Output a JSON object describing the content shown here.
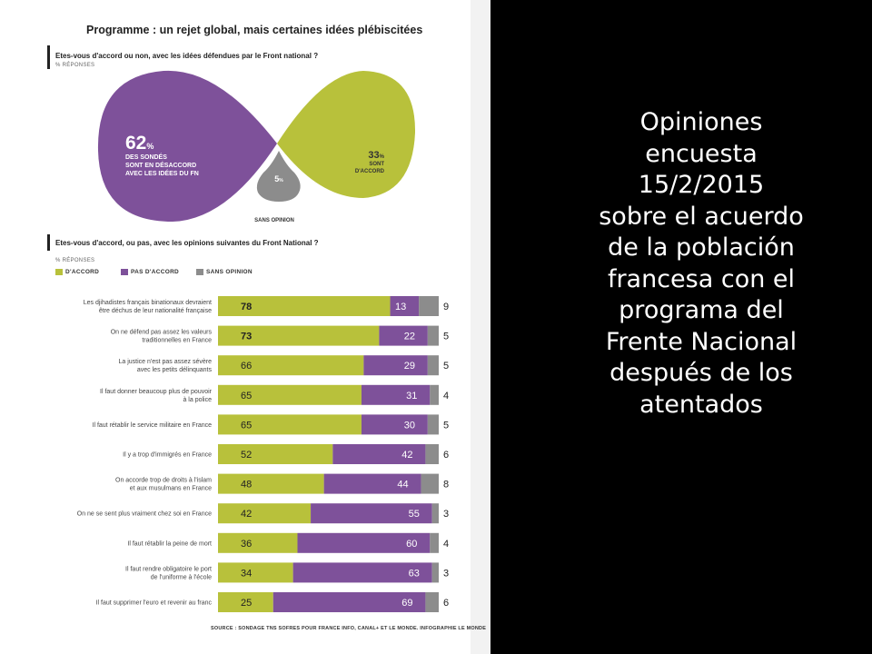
{
  "infographic": {
    "title": "Programme : un rejet global, mais certaines idées plébiscitées",
    "q1": {
      "question": "Etes-vous d'accord ou non, avec les idées défendues par le Front national ?",
      "note": "% RÉPONSES",
      "disagree": {
        "value": "62",
        "unit": "%",
        "lines": [
          "DES SONDÉS",
          "SONT EN DÉSACCORD",
          "AVEC LES IDÉES DU FN"
        ]
      },
      "agree": {
        "value": "33",
        "unit": "%",
        "lines": [
          "SONT",
          "D'ACCORD"
        ]
      },
      "no_opinion": {
        "value": "5",
        "unit": "%",
        "label": "SANS OPINION"
      }
    },
    "q2": {
      "question": "Etes-vous d'accord, ou pas, avec les opinions suivantes du Front National ?",
      "note": "% RÉPONSES"
    },
    "source": "SOURCE : SONDAGE TNS SOFRES POUR FRANCE INFO, CANAL+ ET LE MONDE. INFOGRAPHIE LE MONDE"
  },
  "colors": {
    "agree": "#b8c13b",
    "disagree": "#7e519a",
    "no_opinion": "#8c8c8c"
  },
  "chart_data": [
    {
      "type": "pie",
      "categories": [
        "PAS D'ACCORD",
        "D'ACCORD",
        "SANS OPINION"
      ],
      "values": [
        62,
        33,
        5
      ]
    },
    {
      "type": "bar",
      "orientation": "horizontal",
      "stacked": true,
      "legend": "top-left",
      "xlim": [
        0,
        100
      ],
      "categories": [
        [
          "Les djihadistes français binationaux devraient",
          "être déchus de leur nationalité française"
        ],
        [
          "On ne défend pas assez les valeurs",
          "traditionnelles en France"
        ],
        [
          "La justice n'est pas assez sévère",
          "avec les petits délinquants"
        ],
        [
          "Il faut donner beaucoup plus de pouvoir",
          "à la police"
        ],
        [
          "Il faut rétablir le service militaire en France"
        ],
        [
          "Il y a trop d'immigrés en France"
        ],
        [
          "On accorde trop de droits à l'islam",
          "et aux musulmans en France"
        ],
        [
          "On ne se sent plus vraiment chez soi en France"
        ],
        [
          "Il faut rétablir la peine de mort"
        ],
        [
          "Il faut rendre obligatoire le port",
          "de l'uniforme à l'école"
        ],
        [
          "Il faut supprimer l'euro et revenir au franc"
        ]
      ],
      "series": [
        {
          "name": "D'ACCORD",
          "values": [
            78,
            73,
            66,
            65,
            65,
            52,
            48,
            42,
            36,
            34,
            25
          ]
        },
        {
          "name": "PAS D'ACCORD",
          "values": [
            13,
            22,
            29,
            31,
            30,
            42,
            44,
            55,
            60,
            63,
            69
          ]
        },
        {
          "name": "SANS OPINION",
          "values": [
            9,
            5,
            5,
            4,
            5,
            6,
            8,
            3,
            4,
            3,
            6
          ]
        }
      ]
    }
  ],
  "caption": {
    "lines": [
      "Opiniones",
      "encuesta",
      "15/2/2015",
      "sobre el acuerdo",
      "de la población",
      "francesa con el",
      "programa del",
      "Frente Nacional",
      "después de los",
      "atentados"
    ]
  }
}
